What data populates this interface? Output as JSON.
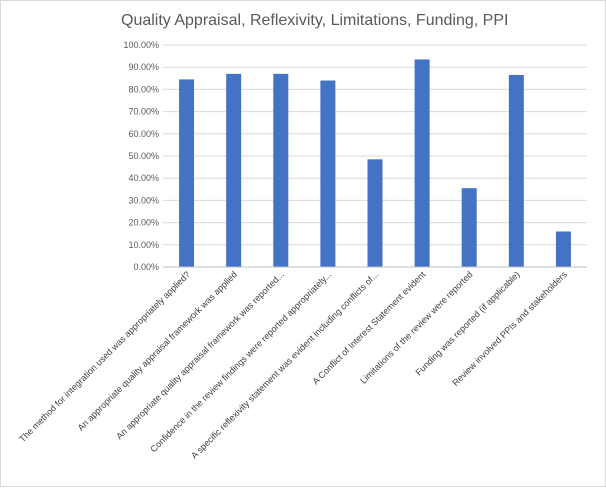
{
  "chart_data": {
    "type": "bar",
    "title": "Quality Appraisal, Reflexivity, Limitations, Funding, PPI",
    "xlabel": "",
    "ylabel": "",
    "ylim": [
      0,
      100
    ],
    "y_tick_labels": [
      "0.00%",
      "10.00%",
      "20.00%",
      "30.00%",
      "40.00%",
      "50.00%",
      "60.00%",
      "70.00%",
      "80.00%",
      "90.00%",
      "100.00%"
    ],
    "categories": [
      "The method for integration used was appropriately applied?",
      "An appropriate quality appraisal framework was applied",
      "An appropriate quality appraisal framework was reported...",
      "Confidence in the review findings were reported appropriately...",
      "A specific reflexivity statement was evident including conflicts of...",
      "A Conflict of Interest Statement evident",
      "Limitations of the review were reported",
      "Funding was reported (if applicable)",
      "Review involved PPIs and stakeholders"
    ],
    "values": [
      84.5,
      87,
      87,
      84,
      48.5,
      93.5,
      35.5,
      86.5,
      16
    ],
    "bar_color": "#4472c4",
    "grid": true,
    "legend": "none"
  }
}
